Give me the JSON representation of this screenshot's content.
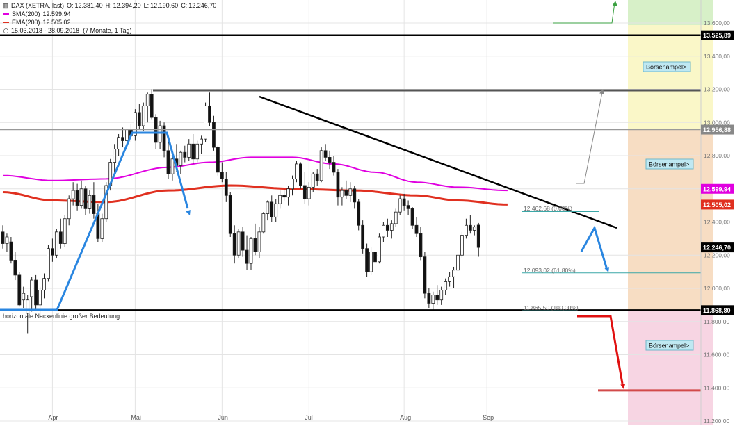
{
  "chart_data": {
    "type": "candlestick",
    "instrument": "DAX (XETRA, last)",
    "ohlc": {
      "O": "12.381,40",
      "H": "12.394,20",
      "L": "12.190,60",
      "C": "12.246,70"
    },
    "indicators": [
      {
        "name": "SMA(200)",
        "value": "12.599,94",
        "color": "#e000e0"
      },
      {
        "name": "EMA(200)",
        "value": "12.505,02",
        "color": "#e03020"
      }
    ],
    "period": "15.03.2018 - 28.09.2018",
    "period_note": "(7 Monate, 1 Tag)",
    "ylim": [
      11200,
      13600
    ],
    "y_ticks": [
      "13.600,00",
      "13.400,00",
      "13.200,00",
      "13.000,00",
      "12.800,00",
      "12.600,00",
      "12.400,00",
      "12.200,00",
      "12.000,00",
      "11.800,00",
      "11.600,00",
      "11.400,00",
      "11.200,00"
    ],
    "y_tick_values": [
      13600,
      13400,
      13200,
      13000,
      12800,
      12600,
      12400,
      12200,
      12000,
      11800,
      11600,
      11400,
      11200
    ],
    "x_ticks": [
      "Apr",
      "Mai",
      "Jun",
      "Jul",
      "Aug",
      "Sep"
    ],
    "x_tick_index": [
      12,
      32,
      53,
      74,
      97,
      117
    ],
    "price_tags": [
      {
        "label": "13.525,89",
        "value": 13525.89,
        "bg": "#000000",
        "fg": "#ffffff"
      },
      {
        "label": "12.956,88",
        "value": 12956.88,
        "bg": "#888888",
        "fg": "#ffffff"
      },
      {
        "label": "12.599,94",
        "value": 12599.94,
        "bg": "#e000e0",
        "fg": "#ffffff"
      },
      {
        "label": "12.505,02",
        "value": 12505.02,
        "bg": "#e03020",
        "fg": "#ffffff"
      },
      {
        "label": "12.246,70",
        "value": 12246.7,
        "bg": "#000000",
        "fg": "#ffffff"
      },
      {
        "label": "11.868,80",
        "value": 11868.8,
        "bg": "#000000",
        "fg": "#ffffff"
      }
    ],
    "annotations": {
      "neckline_label": "horizontale Nackenlinie großer Bedeutung",
      "fib_618": "12.093,02 (61,80%)",
      "fib_0": "12.462,68 (0,00%)",
      "fib_100": "11.865,50 (100,00%)"
    },
    "boersenampel": [
      {
        "label": "Börsenampel>",
        "zone": "yellow"
      },
      {
        "label": "Börsenampel>",
        "zone": "orange"
      },
      {
        "label": "Börsenampel>",
        "zone": "pink"
      }
    ],
    "zone_colors": {
      "yellow": "#faf7c8",
      "orange": "#f7ddc3",
      "pink": "#f7d5e3",
      "green": "#d7f0c8"
    },
    "candles": [
      [
        12340,
        12380,
        12240,
        12270
      ],
      [
        12270,
        12330,
        12220,
        12310
      ],
      [
        12280,
        12310,
        12150,
        12170
      ],
      [
        12170,
        12220,
        12050,
        12080
      ],
      [
        12080,
        12100,
        11890,
        11900
      ],
      [
        11930,
        12010,
        11880,
        11970
      ],
      [
        11850,
        11960,
        11730,
        11930
      ],
      [
        11950,
        12070,
        11860,
        12050
      ],
      [
        12050,
        12080,
        11870,
        11900
      ],
      [
        11900,
        12010,
        11840,
        11990
      ],
      [
        11990,
        12090,
        11940,
        12060
      ],
      [
        12060,
        12260,
        12040,
        12240
      ],
      [
        12240,
        12300,
        12160,
        12200
      ],
      [
        12200,
        12360,
        12180,
        12340
      ],
      [
        12340,
        12420,
        12240,
        12270
      ],
      [
        12270,
        12440,
        12250,
        12420
      ],
      [
        12420,
        12560,
        12380,
        12540
      ],
      [
        12540,
        12640,
        12500,
        12590
      ],
      [
        12590,
        12630,
        12470,
        12500
      ],
      [
        12500,
        12650,
        12480,
        12600
      ],
      [
        12600,
        12620,
        12440,
        12480
      ],
      [
        12480,
        12590,
        12450,
        12560
      ],
      [
        12560,
        12640,
        12420,
        12450
      ],
      [
        12450,
        12510,
        12280,
        12300
      ],
      [
        12300,
        12450,
        12280,
        12420
      ],
      [
        12420,
        12640,
        12400,
        12620
      ],
      [
        12620,
        12780,
        12590,
        12760
      ],
      [
        12760,
        12870,
        12700,
        12840
      ],
      [
        12840,
        12930,
        12800,
        12910
      ],
      [
        12910,
        12970,
        12850,
        12890
      ],
      [
        12890,
        12990,
        12860,
        12960
      ],
      [
        12960,
        12990,
        12880,
        12920
      ],
      [
        12920,
        13080,
        12890,
        13060
      ],
      [
        13060,
        13110,
        12960,
        12980
      ],
      [
        12980,
        13120,
        12950,
        13100
      ],
      [
        13100,
        13180,
        13000,
        13170
      ],
      [
        13170,
        13200,
        13020,
        13030
      ],
      [
        13030,
        13050,
        12840,
        12880
      ],
      [
        12880,
        13010,
        12840,
        12980
      ],
      [
        12980,
        13000,
        12790,
        12830
      ],
      [
        12830,
        12880,
        12660,
        12690
      ],
      [
        12690,
        12800,
        12650,
        12780
      ],
      [
        12780,
        12870,
        12700,
        12740
      ],
      [
        12740,
        12830,
        12690,
        12820
      ],
      [
        12820,
        12860,
        12760,
        12790
      ],
      [
        12790,
        12900,
        12770,
        12870
      ],
      [
        12870,
        12930,
        12750,
        12780
      ],
      [
        12780,
        12890,
        12760,
        12870
      ],
      [
        12870,
        12920,
        12810,
        12900
      ],
      [
        12900,
        13120,
        12880,
        13100
      ],
      [
        13100,
        13180,
        12980,
        13000
      ],
      [
        13000,
        13040,
        12830,
        12850
      ],
      [
        12850,
        12860,
        12680,
        12700
      ],
      [
        12700,
        12760,
        12640,
        12660
      ],
      [
        12660,
        12700,
        12520,
        12560
      ],
      [
        12560,
        12580,
        12310,
        12330
      ],
      [
        12330,
        12380,
        12150,
        12200
      ],
      [
        12200,
        12360,
        12180,
        12340
      ],
      [
        12340,
        12370,
        12190,
        12230
      ],
      [
        12230,
        12320,
        12110,
        12150
      ],
      [
        12150,
        12310,
        12110,
        12300
      ],
      [
        12300,
        12390,
        12200,
        12220
      ],
      [
        12220,
        12370,
        12180,
        12340
      ],
      [
        12340,
        12460,
        12330,
        12450
      ],
      [
        12450,
        12530,
        12410,
        12520
      ],
      [
        12520,
        12560,
        12400,
        12430
      ],
      [
        12430,
        12540,
        12400,
        12510
      ],
      [
        12510,
        12590,
        12480,
        12560
      ],
      [
        12560,
        12600,
        12530,
        12550
      ],
      [
        12550,
        12620,
        12500,
        12600
      ],
      [
        12600,
        12680,
        12560,
        12660
      ],
      [
        12660,
        12770,
        12640,
        12750
      ],
      [
        12750,
        12760,
        12600,
        12620
      ],
      [
        12620,
        12700,
        12510,
        12540
      ],
      [
        12540,
        12640,
        12500,
        12610
      ],
      [
        12610,
        12700,
        12580,
        12690
      ],
      [
        12690,
        12720,
        12620,
        12650
      ],
      [
        12650,
        12850,
        12640,
        12830
      ],
      [
        12830,
        12870,
        12770,
        12790
      ],
      [
        12790,
        12830,
        12720,
        12760
      ],
      [
        12760,
        12800,
        12680,
        12700
      ],
      [
        12700,
        12720,
        12500,
        12550
      ],
      [
        12550,
        12610,
        12500,
        12590
      ],
      [
        12590,
        12650,
        12540,
        12560
      ],
      [
        12560,
        12640,
        12520,
        12600
      ],
      [
        12600,
        12620,
        12480,
        12520
      ],
      [
        12520,
        12540,
        12350,
        12380
      ],
      [
        12380,
        12410,
        12210,
        12240
      ],
      [
        12240,
        12270,
        12070,
        12100
      ],
      [
        12100,
        12250,
        12080,
        12220
      ],
      [
        12220,
        12280,
        12140,
        12160
      ],
      [
        12160,
        12330,
        12150,
        12310
      ],
      [
        12310,
        12400,
        12280,
        12380
      ],
      [
        12380,
        12420,
        12310,
        12350
      ],
      [
        12350,
        12410,
        12300,
        12390
      ],
      [
        12390,
        12480,
        12370,
        12460
      ],
      [
        12460,
        12560,
        12440,
        12540
      ],
      [
        12540,
        12570,
        12470,
        12500
      ],
      [
        12500,
        12530,
        12440,
        12480
      ],
      [
        12480,
        12490,
        12360,
        12380
      ],
      [
        12380,
        12430,
        12310,
        12330
      ],
      [
        12330,
        12370,
        12170,
        12190
      ],
      [
        12190,
        12220,
        11940,
        11970
      ],
      [
        11970,
        12000,
        11880,
        11910
      ],
      [
        11910,
        11980,
        11870,
        11960
      ],
      [
        11960,
        12020,
        11900,
        11930
      ],
      [
        11930,
        12010,
        11900,
        11990
      ],
      [
        11990,
        12060,
        11960,
        12040
      ],
      [
        12040,
        12100,
        12010,
        12070
      ],
      [
        12070,
        12130,
        12000,
        12110
      ],
      [
        12110,
        12220,
        12090,
        12200
      ],
      [
        12200,
        12340,
        12180,
        12320
      ],
      [
        12320,
        12420,
        12300,
        12380
      ],
      [
        12380,
        12440,
        12330,
        12350
      ],
      [
        12350,
        12380,
        12320,
        12370
      ],
      [
        12381.4,
        12394.2,
        12190.6,
        12246.7
      ]
    ],
    "sma200": [
      [
        0,
        12680
      ],
      [
        12,
        12650
      ],
      [
        25,
        12660
      ],
      [
        40,
        12730
      ],
      [
        50,
        12760
      ],
      [
        60,
        12790
      ],
      [
        70,
        12790
      ],
      [
        80,
        12750
      ],
      [
        90,
        12700
      ],
      [
        100,
        12640
      ],
      [
        110,
        12610
      ],
      [
        122,
        12590
      ]
    ],
    "ema200": [
      [
        0,
        12580
      ],
      [
        12,
        12530
      ],
      [
        25,
        12520
      ],
      [
        40,
        12590
      ],
      [
        55,
        12620
      ],
      [
        70,
        12600
      ],
      [
        85,
        12590
      ],
      [
        100,
        12560
      ],
      [
        110,
        12530
      ],
      [
        122,
        12505
      ]
    ]
  }
}
